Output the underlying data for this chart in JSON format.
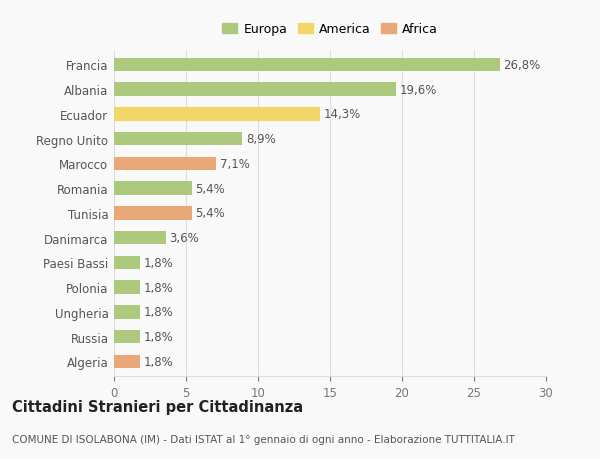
{
  "categories": [
    "Francia",
    "Albania",
    "Ecuador",
    "Regno Unito",
    "Marocco",
    "Romania",
    "Tunisia",
    "Danimarca",
    "Paesi Bassi",
    "Polonia",
    "Ungheria",
    "Russia",
    "Algeria"
  ],
  "values": [
    26.8,
    19.6,
    14.3,
    8.9,
    7.1,
    5.4,
    5.4,
    3.6,
    1.8,
    1.8,
    1.8,
    1.8,
    1.8
  ],
  "labels": [
    "26,8%",
    "19,6%",
    "14,3%",
    "8,9%",
    "7,1%",
    "5,4%",
    "5,4%",
    "3,6%",
    "1,8%",
    "1,8%",
    "1,8%",
    "1,8%",
    "1,8%"
  ],
  "continents": [
    "Europa",
    "Europa",
    "America",
    "Europa",
    "Africa",
    "Europa",
    "Africa",
    "Europa",
    "Europa",
    "Europa",
    "Europa",
    "Europa",
    "Africa"
  ],
  "colors": {
    "Europa": "#adc97e",
    "America": "#f2d668",
    "Africa": "#e8a878"
  },
  "legend_items": [
    "Europa",
    "America",
    "Africa"
  ],
  "legend_colors": [
    "#adc97e",
    "#f2d668",
    "#e8a878"
  ],
  "title": "Cittadini Stranieri per Cittadinanza",
  "subtitle": "COMUNE DI ISOLABONA (IM) - Dati ISTAT al 1° gennaio di ogni anno - Elaborazione TUTTITALIA.IT",
  "xlim": [
    0,
    30
  ],
  "xticks": [
    0,
    5,
    10,
    15,
    20,
    25,
    30
  ],
  "background_color": "#f9f9f9",
  "grid_color": "#dddddd",
  "bar_height": 0.55,
  "label_fontsize": 8.5,
  "tick_fontsize": 8.5,
  "title_fontsize": 10.5,
  "subtitle_fontsize": 7.5
}
